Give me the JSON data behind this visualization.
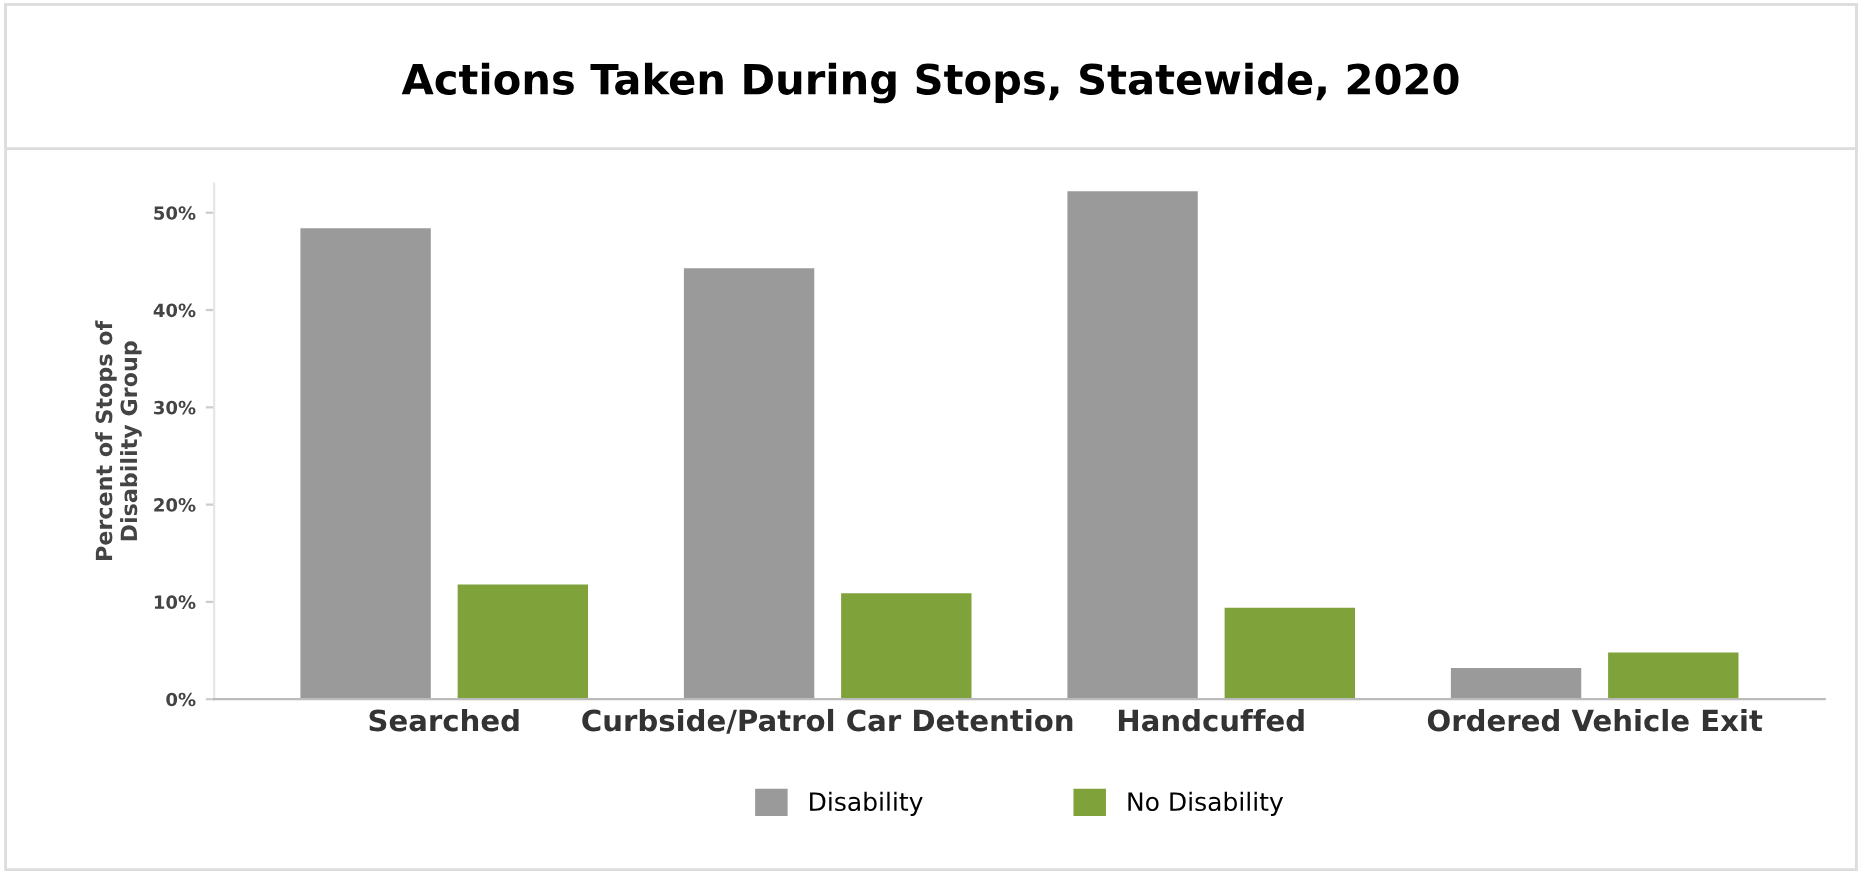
{
  "chart_data": {
    "type": "bar",
    "title": "Actions Taken During Stops, Statewide, 2020",
    "ylabel": "Percent of Stops of\nDisability Group",
    "categories": [
      "Searched",
      "Curbside/Patrol Car Detention",
      "Handcuffed",
      "Ordered Vehicle Exit"
    ],
    "series": [
      {
        "name": "Disability",
        "color": "#9a9a9a",
        "values": [
          48.4,
          44.3,
          52.2,
          3.2
        ]
      },
      {
        "name": "No Disability",
        "color": "#7fa33a",
        "values": [
          11.8,
          10.9,
          9.4,
          4.8
        ]
      }
    ],
    "ylim": [
      0,
      53
    ],
    "yticks": [
      {
        "value": 0,
        "label": "0%"
      },
      {
        "value": 10,
        "label": "10%"
      },
      {
        "value": 20,
        "label": "20%"
      },
      {
        "value": 30,
        "label": "30%"
      },
      {
        "value": 40,
        "label": "40%"
      },
      {
        "value": 50,
        "label": "50%"
      }
    ],
    "grid": false,
    "legend": "bottom"
  }
}
